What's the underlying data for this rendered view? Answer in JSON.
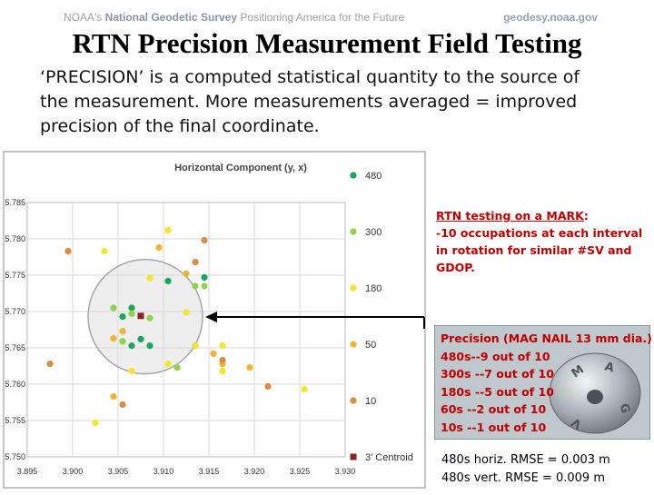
{
  "header": {
    "agency_prefix": "NOAA's",
    "agency_name": "National Geodetic Survey",
    "tagline": "Positioning America for the Future",
    "website": "geodesy.noaa.gov"
  },
  "title": "RTN Precision Measurement Field Testing",
  "intro_text": "‘PRECISION’ is a computed statistical quantity to the source of the measurement.   More measurements averaged = improved precision of the final coordinate.",
  "rtn_box": {
    "heading": "RTN testing on a MARK",
    "heading_suffix": ":",
    "body": "-10 occupations at each interval in rotation for similar #SV and GDOP."
  },
  "precision_panel": {
    "lines": [
      "Precision (MAG NAIL 13 mm dia.)",
      "480s--9 out of 10",
      "300s --7 out of 10",
      "180s --5 out of 10",
      "60s  --2 out of 10",
      "10s  --1 out of 10"
    ]
  },
  "rmse": {
    "horizontal": "480s horiz. RMSE = 0.003 m",
    "vertical": "480s vert.   RMSE = 0.009 m"
  },
  "colors": {
    "c480": "#19a85a",
    "c300": "#92d050",
    "c180": "#f2e72a",
    "c50": "#f0b432",
    "c10": "#d58e44",
    "centroid": "#8b2525",
    "text_red": "#c00000"
  },
  "chart_data": {
    "type": "scatter",
    "title": "Horizontal Component (y, x)",
    "xlabel": "",
    "ylabel": "",
    "xlim": [
      3.895,
      3.93
    ],
    "ylim": [
      5.75,
      5.785
    ],
    "x_tick_labels": [
      "3.895",
      "3.900",
      "3.905",
      "3.910",
      "3.915",
      "3.920",
      "3.925",
      "3.930"
    ],
    "y_tick_labels": [
      "5.785",
      "5.780",
      "5.775",
      "5.770",
      "5.765",
      "5.760",
      "5.755",
      "5.750"
    ],
    "x_ticks": [
      3.895,
      3.9,
      3.905,
      3.91,
      3.915,
      3.92,
      3.925,
      3.93
    ],
    "y_ticks": [
      5.785,
      5.78,
      5.775,
      5.77,
      5.765,
      5.76,
      5.755,
      5.75
    ],
    "grid": true,
    "legend_position": "right",
    "annotation": {
      "type": "circle",
      "center": [
        3.908,
        5.7693
      ],
      "radius_x": 0.0063,
      "label": ""
    },
    "series": [
      {
        "name": "480",
        "color": "#19a85a",
        "x": [
          3.9105,
          3.9145,
          3.9065,
          3.9055,
          3.9085,
          3.9135,
          3.9075,
          3.9065
        ],
        "y": [
          5.7742,
          5.7747,
          5.7705,
          5.7693,
          5.7653,
          5.7653,
          5.7662,
          5.7653
        ]
      },
      {
        "name": "300",
        "color": "#92d050",
        "x": [
          3.9045,
          3.9065,
          3.9135,
          3.9145,
          3.9115,
          3.9055,
          3.9085,
          3.9055
        ],
        "y": [
          5.7705,
          5.7697,
          5.7735,
          5.7735,
          5.7623,
          5.7659,
          5.7691,
          5.7659
        ]
      },
      {
        "name": "180",
        "color": "#f2e72a",
        "x": [
          3.9105,
          3.9085,
          3.9125,
          3.9135,
          3.9165,
          3.9065,
          3.9105,
          3.9165,
          3.9255,
          3.9035,
          3.9025
        ],
        "y": [
          5.7812,
          5.7746,
          5.7699,
          5.7653,
          5.7653,
          5.7618,
          5.7628,
          5.7618,
          5.7593,
          5.7783,
          5.7547
        ]
      },
      {
        "name": "50",
        "color": "#f0b432",
        "x": [
          3.9095,
          3.9125,
          3.9165,
          3.9045,
          3.9055,
          3.9155,
          3.9195,
          3.9045
        ],
        "y": [
          5.7788,
          5.7752,
          5.7628,
          5.7583,
          5.7673,
          5.7642,
          5.7623,
          5.7663
        ]
      },
      {
        "name": "10",
        "color": "#d58e44",
        "x": [
          3.8995,
          3.9145,
          3.9135,
          3.9165,
          3.8975,
          3.9215,
          3.9055
        ],
        "y": [
          5.7783,
          5.7798,
          5.7768,
          5.7633,
          5.7628,
          5.7597,
          5.7572
        ]
      },
      {
        "name": "3' Centroid",
        "color": "#8b2525",
        "x": [
          3.9075
        ],
        "y": [
          5.7694
        ]
      }
    ]
  }
}
